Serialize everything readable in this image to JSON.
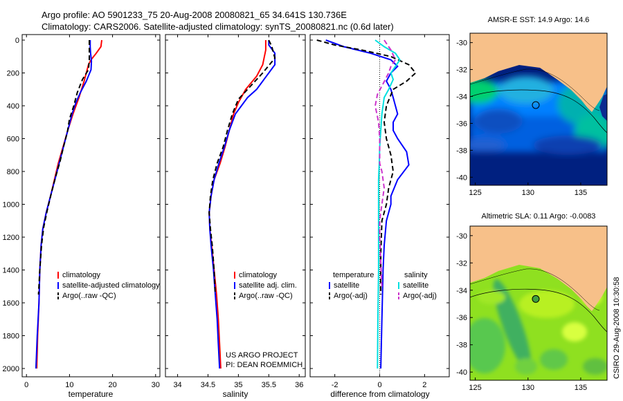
{
  "header": {
    "line1": "Argo profile: AO 5901233_75 20-Aug-2008 20080821_65 34.641S 130.736E",
    "line2": "Climatology: CARS2006. Satellite-adjusted climatology: synTS_20080821.nc (0.6d later)"
  },
  "colors": {
    "climatology": "#ff0000",
    "satellite": "#0000ff",
    "argo": "#000000",
    "sal_satellite": "#00e0e0",
    "sal_argo": "#cc33cc",
    "land": "#f7c089"
  },
  "chart_data": [
    {
      "type": "line",
      "xlabel": "temperature",
      "ylabel": "",
      "xlim": [
        -1,
        31
      ],
      "ylim": [
        2050,
        0
      ],
      "xticks": [
        0,
        10,
        20,
        30
      ],
      "yticks": [
        0,
        200,
        400,
        600,
        800,
        1000,
        1200,
        1400,
        1600,
        1800,
        2000
      ],
      "legend": [
        "climatology",
        "satellite-adjusted climatology",
        "Argo(..raw -QC)"
      ],
      "series": [
        {
          "name": "climatology",
          "color": "#ff0000",
          "dash": "",
          "points": [
            [
              17.5,
              0
            ],
            [
              17.3,
              40
            ],
            [
              16.2,
              80
            ],
            [
              15,
              120
            ],
            [
              14.4,
              150
            ],
            [
              13.4,
              250
            ],
            [
              12.2,
              350
            ],
            [
              10.8,
              450
            ],
            [
              9.6,
              550
            ],
            [
              8.5,
              650
            ],
            [
              7.4,
              750
            ],
            [
              6.5,
              850
            ],
            [
              5.6,
              950
            ],
            [
              4.6,
              1050
            ],
            [
              3.8,
              1150
            ],
            [
              3.4,
              1250
            ],
            [
              3.1,
              1400
            ],
            [
              2.9,
              1600
            ],
            [
              2.6,
              1800
            ],
            [
              2.4,
              2000
            ]
          ]
        },
        {
          "name": "satellite-adjusted climatology",
          "color": "#0000ff",
          "dash": "",
          "points": [
            [
              14.8,
              0
            ],
            [
              14.8,
              40
            ],
            [
              14.9,
              80
            ],
            [
              15.1,
              130
            ],
            [
              15,
              180
            ],
            [
              13.9,
              250
            ],
            [
              12.5,
              320
            ],
            [
              11.5,
              380
            ],
            [
              10.6,
              450
            ],
            [
              9.6,
              550
            ],
            [
              8.6,
              650
            ],
            [
              7.6,
              750
            ],
            [
              6.6,
              850
            ],
            [
              5.6,
              950
            ],
            [
              4.6,
              1050
            ],
            [
              3.8,
              1150
            ],
            [
              3.4,
              1250
            ],
            [
              3.1,
              1400
            ],
            [
              2.9,
              1600
            ],
            [
              2.5,
              1800
            ],
            [
              2.2,
              2000
            ]
          ]
        },
        {
          "name": "Argo(..raw -QC)",
          "color": "#000000",
          "dash": "7,4",
          "points": [
            [
              14.6,
              0
            ],
            [
              14.6,
              60
            ],
            [
              14.6,
              120
            ],
            [
              14.4,
              180
            ],
            [
              13,
              240
            ],
            [
              11.8,
              320
            ],
            [
              11,
              400
            ],
            [
              10,
              480
            ],
            [
              9.5,
              560
            ],
            [
              8.6,
              650
            ],
            [
              7.8,
              740
            ],
            [
              6.8,
              830
            ],
            [
              5.7,
              940
            ],
            [
              4.8,
              1040
            ],
            [
              4,
              1140
            ],
            [
              3.5,
              1250
            ],
            [
              3.1,
              1400
            ],
            [
              2.8,
              1550
            ]
          ]
        }
      ]
    },
    {
      "type": "line",
      "xlabel": "salinity",
      "ylabel": "",
      "xlim": [
        33.8,
        36.1
      ],
      "ylim": [
        2050,
        0
      ],
      "xticks": [
        34,
        34.5,
        35,
        35.5,
        36
      ],
      "legend": [
        "climatology",
        "satellite adj. clim.",
        "Argo(..raw -QC)"
      ],
      "annotation": [
        "US ARGO PROJECT",
        "PI: DEAN ROEMMICH"
      ],
      "series": [
        {
          "name": "climatology",
          "color": "#ff0000",
          "dash": "",
          "points": [
            [
              35.45,
              0
            ],
            [
              35.45,
              60
            ],
            [
              35.4,
              150
            ],
            [
              35.3,
              220
            ],
            [
              35.12,
              300
            ],
            [
              35,
              380
            ],
            [
              34.92,
              450
            ],
            [
              34.85,
              550
            ],
            [
              34.78,
              650
            ],
            [
              34.7,
              750
            ],
            [
              34.6,
              850
            ],
            [
              34.55,
              950
            ],
            [
              34.52,
              1050
            ],
            [
              34.53,
              1150
            ],
            [
              34.56,
              1250
            ],
            [
              34.6,
              1400
            ],
            [
              34.64,
              1550
            ],
            [
              34.67,
              1700
            ],
            [
              34.69,
              1850
            ],
            [
              34.71,
              2000
            ]
          ]
        },
        {
          "name": "satellite adj. clim.",
          "color": "#0000ff",
          "dash": "",
          "points": [
            [
              35.5,
              0
            ],
            [
              35.5,
              30
            ],
            [
              35.6,
              80
            ],
            [
              35.6,
              150
            ],
            [
              35.5,
              200
            ],
            [
              35.3,
              300
            ],
            [
              35.15,
              350
            ],
            [
              35.05,
              400
            ],
            [
              34.95,
              450
            ],
            [
              34.85,
              550
            ],
            [
              34.77,
              650
            ],
            [
              34.68,
              750
            ],
            [
              34.6,
              850
            ],
            [
              34.55,
              950
            ],
            [
              34.52,
              1050
            ],
            [
              34.53,
              1150
            ],
            [
              34.55,
              1250
            ],
            [
              34.59,
              1400
            ],
            [
              34.62,
              1550
            ],
            [
              34.65,
              1700
            ],
            [
              34.67,
              1850
            ],
            [
              34.69,
              2000
            ]
          ]
        },
        {
          "name": "Argo(..raw -QC)",
          "color": "#000000",
          "dash": "7,4",
          "points": [
            [
              35.5,
              0
            ],
            [
              35.55,
              40
            ],
            [
              35.6,
              110
            ],
            [
              35.4,
              200
            ],
            [
              35.2,
              280
            ],
            [
              35,
              360
            ],
            [
              34.9,
              450
            ],
            [
              34.82,
              550
            ],
            [
              34.75,
              650
            ],
            [
              34.65,
              750
            ],
            [
              34.58,
              850
            ],
            [
              34.54,
              950
            ],
            [
              34.52,
              1050
            ],
            [
              34.54,
              1150
            ],
            [
              34.57,
              1250
            ],
            [
              34.6,
              1400
            ],
            [
              34.62,
              1550
            ]
          ]
        }
      ]
    },
    {
      "type": "line",
      "xlabel": "difference from climatology",
      "ylabel": "",
      "xlim": [
        -3.1,
        3.1
      ],
      "ylim": [
        2050,
        0
      ],
      "xticks": [
        -2,
        0,
        2
      ],
      "legend_left_title": "temperature",
      "legend_right_title": "salinity",
      "legend_left": [
        "satellite",
        "Argo(-adj)"
      ],
      "legend_right": [
        "satellite",
        "Argo(-adj)"
      ],
      "series": [
        {
          "name": "temperature satellite",
          "color": "#0000ff",
          "dash": "",
          "points": [
            [
              -2.4,
              0
            ],
            [
              -1.6,
              40
            ],
            [
              -0.4,
              80
            ],
            [
              0.5,
              120
            ],
            [
              0.8,
              160
            ],
            [
              0.5,
              200
            ],
            [
              0.3,
              250
            ],
            [
              0.5,
              300
            ],
            [
              0.6,
              350
            ],
            [
              0.7,
              400
            ],
            [
              0.8,
              450
            ],
            [
              0.6,
              500
            ],
            [
              0.6,
              550
            ],
            [
              0.8,
              600
            ],
            [
              1.2,
              680
            ],
            [
              1.3,
              760
            ],
            [
              0.8,
              850
            ],
            [
              0.5,
              950
            ],
            [
              0.5,
              1000
            ],
            [
              0.3,
              1100
            ],
            [
              0.2,
              1250
            ],
            [
              0.15,
              1400
            ],
            [
              0.1,
              1700
            ],
            [
              0.05,
              2000
            ]
          ]
        },
        {
          "name": "temperature Argo(-adj)",
          "color": "#000000",
          "dash": "7,4",
          "points": [
            [
              -2.8,
              0
            ],
            [
              -2,
              30
            ],
            [
              -0.8,
              60
            ],
            [
              0.5,
              100
            ],
            [
              1.3,
              150
            ],
            [
              1.6,
              200
            ],
            [
              1.2,
              250
            ],
            [
              0.6,
              300
            ],
            [
              0.3,
              400
            ],
            [
              0.2,
              500
            ],
            [
              0.3,
              600
            ],
            [
              0.5,
              700
            ],
            [
              0.6,
              800
            ],
            [
              0.4,
              900
            ],
            [
              0.3,
              1000
            ],
            [
              0.1,
              1100
            ],
            [
              0.05,
              1300
            ],
            [
              0.05,
              1550
            ]
          ]
        },
        {
          "name": "salinity satellite",
          "color": "#00e0e0",
          "dash": "",
          "points": [
            [
              -0.2,
              0
            ],
            [
              0.2,
              40
            ],
            [
              0.7,
              80
            ],
            [
              0.9,
              120
            ],
            [
              0.7,
              160
            ],
            [
              0.5,
              200
            ],
            [
              0.6,
              240
            ],
            [
              0.4,
              300
            ],
            [
              0.2,
              350
            ],
            [
              0.1,
              450
            ],
            [
              0.05,
              550
            ],
            [
              0,
              650
            ],
            [
              -0.02,
              750
            ],
            [
              -0.05,
              850
            ],
            [
              -0.05,
              1000
            ],
            [
              -0.05,
              1200
            ],
            [
              -0.05,
              1400
            ],
            [
              -0.08,
              1700
            ],
            [
              -0.1,
              2000
            ]
          ]
        },
        {
          "name": "salinity Argo(-adj)",
          "color": "#cc33cc",
          "dash": "7,4",
          "points": [
            [
              0.2,
              0
            ],
            [
              0.5,
              60
            ],
            [
              0.7,
              120
            ],
            [
              0.5,
              160
            ],
            [
              0.4,
              200
            ],
            [
              0.1,
              280
            ],
            [
              -0.1,
              330
            ],
            [
              -0.2,
              400
            ],
            [
              -0.05,
              500
            ],
            [
              0,
              600
            ],
            [
              0,
              750
            ],
            [
              0.1,
              800
            ],
            [
              0.2,
              900
            ],
            [
              0.1,
              1000
            ],
            [
              0,
              1100
            ],
            [
              0,
              1200
            ],
            [
              0.05,
              1350
            ],
            [
              0.1,
              1500
            ]
          ]
        }
      ]
    }
  ],
  "maps": [
    {
      "title": "AMSR-E SST: 14.9 Argo: 14.6",
      "kind": "sst",
      "lon": [
        124.5,
        137.5
      ],
      "lat": [
        -40.6,
        -29.3
      ],
      "xticks": [
        125,
        130,
        135
      ],
      "yticks": [
        -30,
        -32,
        -34,
        -36,
        -38,
        -40
      ],
      "marker": [
        130.736,
        -34.641
      ]
    },
    {
      "title": "Altimetric SLA: 0.11 Argo: -0.0083",
      "kind": "sla",
      "lon": [
        124.5,
        137.5
      ],
      "lat": [
        -40.6,
        -29.3
      ],
      "xticks": [
        125,
        130,
        135
      ],
      "yticks": [
        -30,
        -32,
        -34,
        -36,
        -38,
        -40
      ],
      "marker": [
        130.736,
        -34.641
      ]
    }
  ],
  "side_label": "CSIRO 29-Aug-2008 10:30:58"
}
